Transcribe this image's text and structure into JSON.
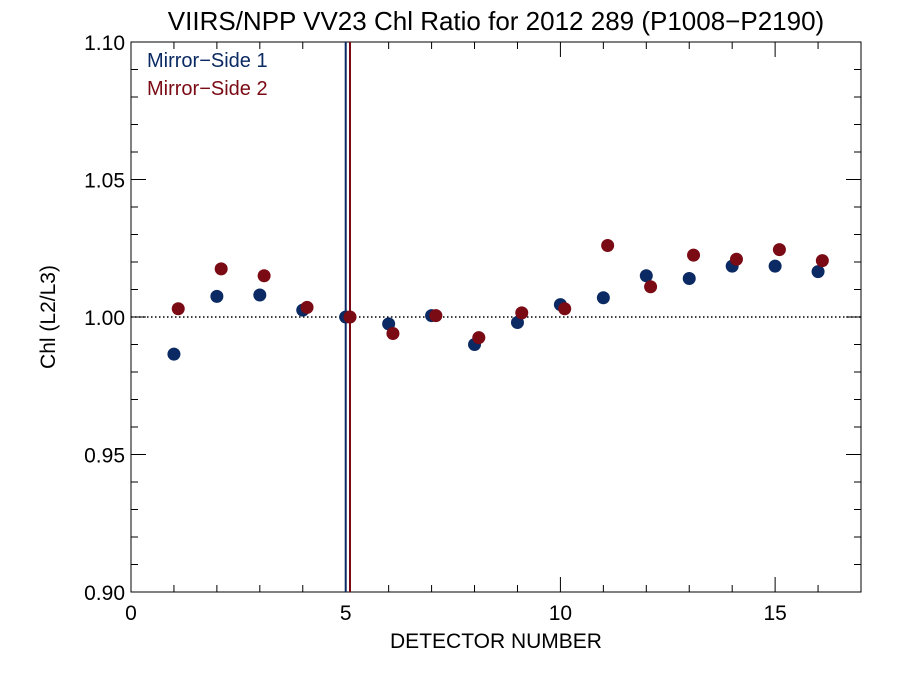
{
  "chart_data": {
    "type": "scatter",
    "title": "VIIRS/NPP VV23 Chl Ratio for 2012 289 (P1008−P2190)",
    "xlabel": "DETECTOR NUMBER",
    "ylabel": "Chl (L2/L3)",
    "xlim": [
      0,
      17
    ],
    "ylim": [
      0.9,
      1.1
    ],
    "x_ticks": [
      0,
      5,
      10,
      15
    ],
    "x_tick_labels": [
      "0",
      "5",
      "10",
      "15"
    ],
    "y_ticks": [
      0.9,
      0.95,
      1.0,
      1.05,
      1.1
    ],
    "y_tick_labels": [
      "0.90",
      "0.95",
      "1.00",
      "1.05",
      "1.10"
    ],
    "reference_line_y": 1.0,
    "legend_position": "top-left",
    "series": [
      {
        "name": "Mirror−Side 1",
        "color": "#0b2a63",
        "x": [
          1,
          2,
          3,
          4,
          5,
          6,
          7,
          8,
          9,
          10,
          11,
          12,
          13,
          14,
          15,
          16
        ],
        "y": [
          0.9865,
          1.0075,
          1.008,
          1.0025,
          1.0,
          0.9975,
          1.0005,
          0.99,
          0.998,
          1.0045,
          1.007,
          1.015,
          1.014,
          1.0185,
          1.0185,
          1.0165
        ]
      },
      {
        "name": "Mirror−Side 2",
        "color": "#7a0a14",
        "x": [
          1.1,
          2.1,
          3.1,
          4.1,
          5.1,
          6.1,
          7.1,
          8.1,
          9.1,
          10.1,
          11.1,
          12.1,
          13.1,
          14.1,
          15.1,
          16.1
        ],
        "y": [
          1.003,
          1.0175,
          1.015,
          1.0035,
          1.0,
          0.994,
          1.0005,
          0.9925,
          1.0015,
          1.003,
          1.026,
          1.011,
          1.0225,
          1.021,
          1.0245,
          1.0205
        ]
      }
    ],
    "vertical_lines": [
      {
        "x": 5.0,
        "color": "#0b2a63"
      },
      {
        "x": 5.1,
        "color": "#7a0a14"
      }
    ]
  }
}
